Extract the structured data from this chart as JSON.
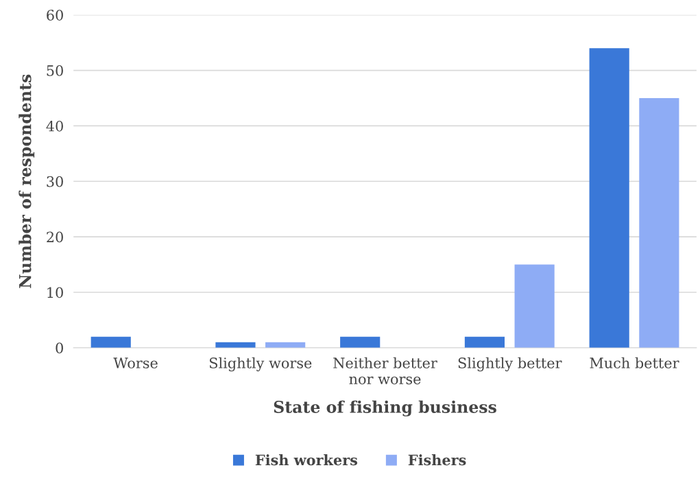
{
  "chart_data": {
    "type": "bar",
    "xlabel": "State of fishing business",
    "ylabel": "Number of respondents",
    "categories": [
      "Worse",
      "Slightly worse",
      "Neither better\nnor worse",
      "Slightly better",
      "Much better"
    ],
    "series": [
      {
        "name": "Fish workers",
        "color": "#3a78d8",
        "values": [
          2,
          1,
          2,
          2,
          54
        ]
      },
      {
        "name": "Fishers",
        "color": "#8eacf5",
        "values": [
          0,
          1,
          0,
          15,
          45
        ]
      }
    ],
    "ylim": [
      0,
      60
    ],
    "yticks": [
      0,
      10,
      20,
      30,
      40,
      50,
      60
    ],
    "grid": "y",
    "legend": "bottom"
  }
}
